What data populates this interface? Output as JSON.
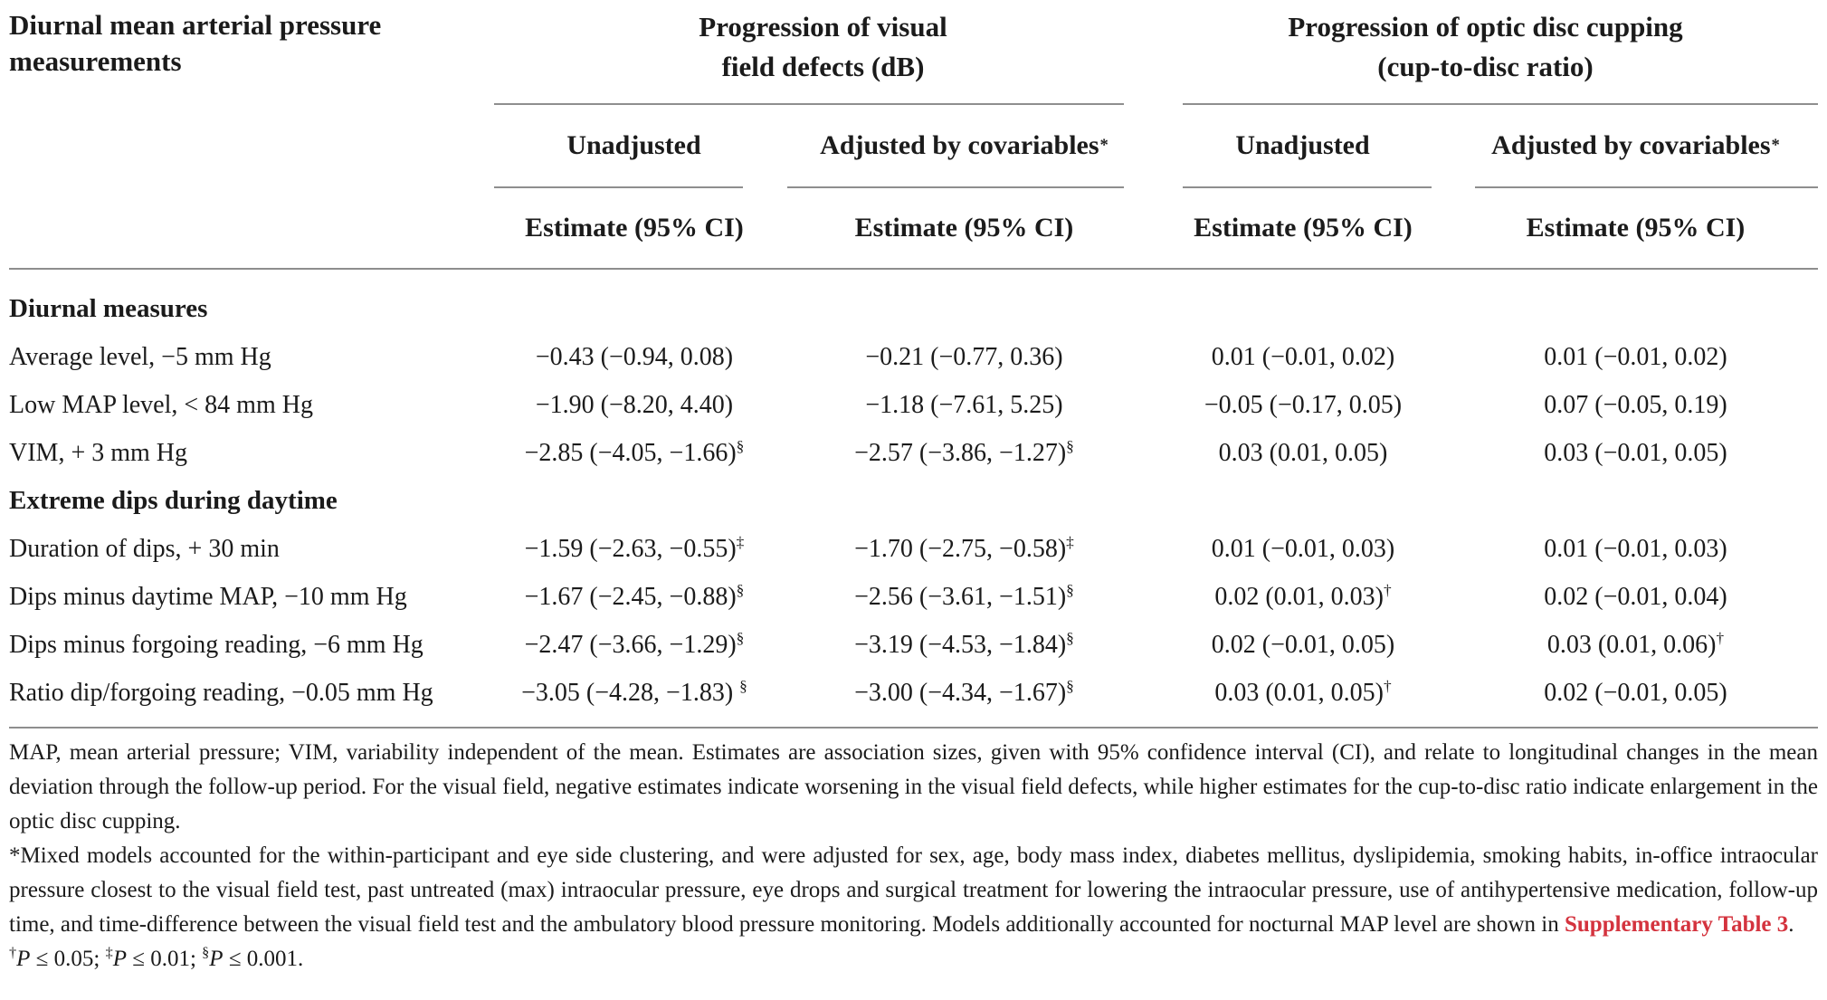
{
  "colors": {
    "text": "#1b1b1b",
    "rule_gray": "#8e8e8e",
    "link_red": "#d4333e"
  },
  "table": {
    "row_header": "Diurnal mean arterial pressure measurements",
    "estimate_label": "Estimate (95% CI)",
    "groups": [
      {
        "title_line1": "Progression of visual",
        "title_line2": "field defects (dB)",
        "subs": [
          {
            "label": "Unadjusted",
            "sup": ""
          },
          {
            "label": "Adjusted by covariables",
            "sup": "*"
          }
        ]
      },
      {
        "title_line1": "Progression of optic disc cupping",
        "title_line2": "(cup-to-disc ratio)",
        "subs": [
          {
            "label": "Unadjusted",
            "sup": ""
          },
          {
            "label": "Adjusted by covariables",
            "sup": "*"
          }
        ]
      }
    ],
    "rows": [
      {
        "label": "Diurnal measures",
        "section": true
      },
      {
        "label": "Average level, −5 mm Hg",
        "cells": [
          {
            "t": "−0.43 (−0.94, 0.08)",
            "s": ""
          },
          {
            "t": "−0.21 (−0.77, 0.36)",
            "s": ""
          },
          {
            "t": "0.01 (−0.01, 0.02)",
            "s": ""
          },
          {
            "t": "0.01 (−0.01, 0.02)",
            "s": ""
          }
        ]
      },
      {
        "label": "Low MAP level, < 84 mm Hg",
        "cells": [
          {
            "t": "−1.90 (−8.20, 4.40)",
            "s": ""
          },
          {
            "t": "−1.18 (−7.61, 5.25)",
            "s": ""
          },
          {
            "t": "−0.05 (−0.17, 0.05)",
            "s": ""
          },
          {
            "t": "0.07 (−0.05, 0.19)",
            "s": ""
          }
        ]
      },
      {
        "label": "VIM, + 3 mm Hg",
        "cells": [
          {
            "t": "−2.85 (−4.05, −1.66)",
            "s": "§"
          },
          {
            "t": "−2.57 (−3.86, −1.27)",
            "s": "§"
          },
          {
            "t": "0.03 (0.01, 0.05)",
            "s": ""
          },
          {
            "t": "0.03 (−0.01, 0.05)",
            "s": ""
          }
        ]
      },
      {
        "label": "Extreme dips during daytime",
        "section": true
      },
      {
        "label": "Duration of dips, + 30 min",
        "cells": [
          {
            "t": "−1.59 (−2.63, −0.55)",
            "s": "‡"
          },
          {
            "t": "−1.70 (−2.75, −0.58)",
            "s": "‡"
          },
          {
            "t": "0.01 (−0.01, 0.03)",
            "s": ""
          },
          {
            "t": "0.01 (−0.01, 0.03)",
            "s": ""
          }
        ]
      },
      {
        "label": "Dips minus daytime MAP, −10 mm Hg",
        "cells": [
          {
            "t": "−1.67 (−2.45, −0.88)",
            "s": "§"
          },
          {
            "t": "−2.56 (−3.61, −1.51)",
            "s": "§"
          },
          {
            "t": "0.02 (0.01, 0.03)",
            "s": "†"
          },
          {
            "t": "0.02 (−0.01, 0.04)",
            "s": ""
          }
        ]
      },
      {
        "label": "Dips minus forgoing reading, −6 mm Hg",
        "cells": [
          {
            "t": "−2.47 (−3.66, −1.29)",
            "s": "§"
          },
          {
            "t": "−3.19 (−4.53, −1.84)",
            "s": "§"
          },
          {
            "t": "0.02 (−0.01, 0.05)",
            "s": ""
          },
          {
            "t": "0.03 (0.01, 0.06)",
            "s": "†"
          }
        ]
      },
      {
        "label": "Ratio dip/forgoing reading, −0.05 mm Hg",
        "cells": [
          {
            "t": "−3.05 (−4.28, −1.83) ",
            "s": "§"
          },
          {
            "t": "−3.00 (−4.34, −1.67)",
            "s": "§"
          },
          {
            "t": "0.03 (0.01, 0.05)",
            "s": "†"
          },
          {
            "t": "0.02 (−0.01, 0.05)",
            "s": ""
          }
        ]
      }
    ]
  },
  "footnotes": {
    "p1": "MAP, mean arterial pressure; VIM, variability independent of the mean. Estimates are association sizes, given with 95% confidence interval (CI), and relate to longitudinal changes in the mean deviation through the follow-up period. For the visual field, negative estimates indicate worsening in the visual field defects, while higher estimates for the cup-to-disc ratio indicate enlargement in the optic disc cupping.",
    "p2_before": "*Mixed models accounted for the within-participant and eye side clustering, and were adjusted for sex, age, body mass index, diabetes mellitus, dyslipidemia, smoking habits, in-office intraocular pressure closest to the visual field test, past untreated (max) intraocular pressure, eye drops and surgical treatment for lowering the intraocular pressure, use of antihypertensive medication, follow-up time, and time-difference between the visual field test and the ambulatory blood pressure monitoring. Models additionally accounted for nocturnal MAP level are shown in ",
    "p2_link": "Supplementary Table 3",
    "p2_after": ".",
    "sig": {
      "s1": "†",
      "p1": "P",
      "t1": " ≤ 0.05; ",
      "s2": "‡",
      "p2": "P",
      "t2": " ≤ 0.01; ",
      "s3": "§",
      "p3": "P",
      "t3": " ≤ 0.001."
    }
  }
}
